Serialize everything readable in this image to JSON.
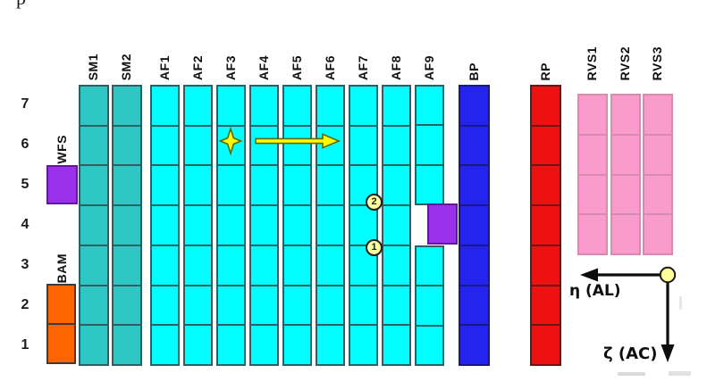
{
  "page": {
    "cropped_fragment": "p"
  },
  "grid": {
    "row_labels": [
      "7",
      "6",
      "5",
      "4",
      "3",
      "2",
      "1"
    ],
    "column_groups": [
      {
        "name": "SM",
        "columns": [
          "SM1",
          "SM2"
        ],
        "rows": 7,
        "fill": "#2fc6c6",
        "stroke": "#2d5f63"
      },
      {
        "name": "AF",
        "columns": [
          "AF1",
          "AF2",
          "AF3",
          "AF4",
          "AF5",
          "AF6",
          "AF7",
          "AF8",
          "AF9"
        ],
        "rows": 7,
        "fill": "#00ffff",
        "stroke": "#2d5f63"
      },
      {
        "name": "BP",
        "columns": [
          "BP"
        ],
        "rows": 7,
        "fill": "#2424ee",
        "stroke": "#191985"
      },
      {
        "name": "RP",
        "columns": [
          "RP"
        ],
        "rows": 7,
        "fill": "#ee1111",
        "stroke": "#6d1414"
      },
      {
        "name": "RVS",
        "columns": [
          "RVS1",
          "RVS2",
          "RVS3"
        ],
        "rows": 4,
        "fill": "#fa9ccb",
        "stroke": "#d78bb1"
      }
    ],
    "missing_cell": {
      "column": "AF9",
      "row": 4
    }
  },
  "side": {
    "wfs_label": "WFS",
    "bam_label": "BAM",
    "wfs_color": "#9a30ea",
    "bam_color": "#fd6500"
  },
  "annotations": {
    "markers": [
      {
        "label": "2"
      },
      {
        "label": "1"
      }
    ],
    "marker_fill": "#ffff9e",
    "star_color": "#ffff00",
    "arrow_color": "#ffff00",
    "displaced_ccd_color": "#9a30ea"
  },
  "axes": {
    "along_scan_label": "η (AL)",
    "across_scan_label": "ζ (AC)",
    "origin_fill": "#ffff99"
  }
}
